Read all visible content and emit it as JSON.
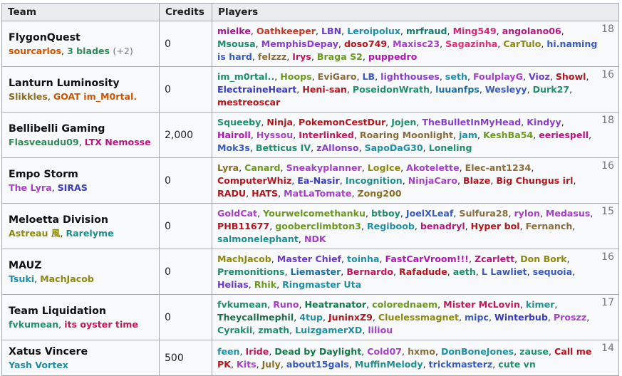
{
  "headers": {
    "team": "Team",
    "credits": "Credits",
    "players": "Players"
  },
  "rows": [
    {
      "team": "FlygonQuest",
      "captains": [
        {
          "name": "sourcarlos",
          "color": "#d35400"
        },
        {
          "name": "3 blades",
          "color": "#2e8b57"
        }
      ],
      "captains_extra": "(+2)",
      "credits": "0",
      "count": "18",
      "players": [
        {
          "n": "mielke",
          "c": "#a0198a"
        },
        {
          "n": "Oathkeeper",
          "c": "#c0392b"
        },
        {
          "n": "LBN",
          "c": "#6a3dc8"
        },
        {
          "n": "Leroipolux",
          "c": "#1f8fa6"
        },
        {
          "n": "mrfraud",
          "c": "#147a6b"
        },
        {
          "n": "Ming549",
          "c": "#d6247a"
        },
        {
          "n": "angolano06",
          "c": "#b5197f"
        },
        {
          "n": "Msousa",
          "c": "#1f8f6e"
        },
        {
          "n": "MemphisDepay",
          "c": "#8a3fd1"
        },
        {
          "n": "doso749",
          "c": "#b5161d"
        },
        {
          "n": "Maxisc23",
          "c": "#a640c8"
        },
        {
          "n": "Sagazinha",
          "c": "#e0307a"
        },
        {
          "n": "CarTulo",
          "c": "#8e8a0f"
        },
        {
          "n": "hi.naming is hard",
          "c": "#3a5cc2"
        },
        {
          "n": "felzzz",
          "c": "#8a6d3b"
        },
        {
          "n": "Irys",
          "c": "#c2185b"
        },
        {
          "n": "Braga S2",
          "c": "#6a9a1f"
        },
        {
          "n": "puppedro",
          "c": "#b018b0"
        }
      ]
    },
    {
      "team": "Lanturn Luminosity",
      "captains": [
        {
          "name": "Slikkles",
          "color": "#8a6d1f"
        },
        {
          "name": "GOAT im_M0rtal.",
          "color": "#d35400"
        }
      ],
      "captains_extra": "",
      "credits": "0",
      "count": "16",
      "players": [
        {
          "n": "im_m0rtal..",
          "c": "#1f8f6e"
        },
        {
          "n": "Hoops",
          "c": "#6a9a1f"
        },
        {
          "n": "EviGaro",
          "c": "#8a6d3b"
        },
        {
          "n": "LB",
          "c": "#3a5cc2"
        },
        {
          "n": "lighthouses",
          "c": "#8a3fd1"
        },
        {
          "n": "seth",
          "c": "#1f8fa6"
        },
        {
          "n": "FoulplayG",
          "c": "#a640c8"
        },
        {
          "n": "Vioz",
          "c": "#6a3dc8"
        },
        {
          "n": "Showl",
          "c": "#b5161d"
        },
        {
          "n": "ElectraineHeart",
          "c": "#3a3dc2"
        },
        {
          "n": "Heni-san",
          "c": "#b5161d"
        },
        {
          "n": "PoseidonWrath",
          "c": "#1f8f6e"
        },
        {
          "n": "luuanfps",
          "c": "#1f6fa6"
        },
        {
          "n": "Wesleyy",
          "c": "#3a5cc2"
        },
        {
          "n": "Durk27",
          "c": "#1f8f6e"
        },
        {
          "n": "mestreoscar",
          "c": "#b5161d"
        }
      ]
    },
    {
      "team": "Bellibelli Gaming",
      "captains": [
        {
          "name": "Flasveaudu09",
          "color": "#2e8b57"
        },
        {
          "name": "LTX Nemosse",
          "color": "#b5197f"
        }
      ],
      "captains_extra": "",
      "credits": "2,000",
      "count": "18",
      "players": [
        {
          "n": "Squeeby",
          "c": "#1f8f6e"
        },
        {
          "n": "Ninja",
          "c": "#b5161d"
        },
        {
          "n": "PokemonCestDur",
          "c": "#b5161d"
        },
        {
          "n": "Jojen",
          "c": "#1f8f6e"
        },
        {
          "n": "TheBulletInMyHead",
          "c": "#8a3fd1"
        },
        {
          "n": "Kindyy",
          "c": "#8a3fd1"
        },
        {
          "n": "Hairoll",
          "c": "#b018b0"
        },
        {
          "n": "Hyssou",
          "c": "#a640c8"
        },
        {
          "n": "Interlinked",
          "c": "#c2185b"
        },
        {
          "n": "Roaring Moonlight",
          "c": "#8a6d3b"
        },
        {
          "n": "jam",
          "c": "#1f8fa6"
        },
        {
          "n": "KeshBa54",
          "c": "#6a9a1f"
        },
        {
          "n": "eeriespell",
          "c": "#b5197f"
        },
        {
          "n": "Mok3s",
          "c": "#3a5cc2"
        },
        {
          "n": "Betticus IV",
          "c": "#1f8f6e"
        },
        {
          "n": "zAllonso",
          "c": "#8a3fd1"
        },
        {
          "n": "SapoDaG30",
          "c": "#1f8fa6"
        },
        {
          "n": "Loneling",
          "c": "#1f8f6e"
        }
      ]
    },
    {
      "team": "Empo Storm",
      "captains": [
        {
          "name": "The Lyra",
          "color": "#a640c8"
        },
        {
          "name": "SIRAS",
          "color": "#3a3dc2"
        }
      ],
      "captains_extra": "",
      "credits": "0",
      "count": "16",
      "players": [
        {
          "n": "Lyra",
          "c": "#8a6d1f"
        },
        {
          "n": "Canard",
          "c": "#6a9a1f"
        },
        {
          "n": "Sneakyplanner",
          "c": "#a640c8"
        },
        {
          "n": "LogIce",
          "c": "#8e8a0f"
        },
        {
          "n": "Akotelette",
          "c": "#a640c8"
        },
        {
          "n": "Elec-ant1234",
          "c": "#8a6d3b"
        },
        {
          "n": "ComputerWhiz",
          "c": "#b5161d"
        },
        {
          "n": "Ea-Nasir",
          "c": "#3a3dc2"
        },
        {
          "n": "Incognition",
          "c": "#1f8f8f"
        },
        {
          "n": "NinjaCaro",
          "c": "#a640c8"
        },
        {
          "n": "Blaze",
          "c": "#b5161d"
        },
        {
          "n": "Big Chungus irl",
          "c": "#b5161d"
        },
        {
          "n": "RADU",
          "c": "#b5161d"
        },
        {
          "n": "HATS",
          "c": "#b5161d"
        },
        {
          "n": "MatLaTomate",
          "c": "#a640c8"
        },
        {
          "n": "Zong200",
          "c": "#8a6d1f"
        }
      ]
    },
    {
      "team": "Meloetta Division",
      "captains": [
        {
          "name": "Astreau 風",
          "color": "#8e8a0f"
        },
        {
          "name": "Rarelyme",
          "color": "#1f8f8f"
        }
      ],
      "captains_extra": "",
      "credits": "0",
      "count": "15",
      "players": [
        {
          "n": "GoldCat",
          "c": "#a640c8"
        },
        {
          "n": "Yourwelcomethanku",
          "c": "#6a9a1f"
        },
        {
          "n": "btboy",
          "c": "#1f8f6e"
        },
        {
          "n": "JoelXLeaf",
          "c": "#3a5cc2"
        },
        {
          "n": "Sulfura28",
          "c": "#8a6d3b"
        },
        {
          "n": "rylon",
          "c": "#a640c8"
        },
        {
          "n": "Medasus",
          "c": "#a640c8"
        },
        {
          "n": "PHB11677",
          "c": "#b5161d"
        },
        {
          "n": "gooberclimbton3",
          "c": "#6a9a1f"
        },
        {
          "n": "Regiboob",
          "c": "#1f8fa6"
        },
        {
          "n": "benadryl",
          "c": "#b5197f"
        },
        {
          "n": "Hyper bol",
          "c": "#b5161d"
        },
        {
          "n": "Fernanch",
          "c": "#8a6d3b"
        },
        {
          "n": "salmonelephant",
          "c": "#1f8f8f"
        },
        {
          "n": "NDK",
          "c": "#a640c8"
        }
      ]
    },
    {
      "team": "MAUZ",
      "captains": [
        {
          "name": "Tsuki",
          "color": "#1f8fa6"
        },
        {
          "name": "MachJacob",
          "color": "#8e8a0f"
        }
      ],
      "captains_extra": "",
      "credits": "0",
      "count": "16",
      "players": [
        {
          "n": "MachJacob",
          "c": "#8e8a0f"
        },
        {
          "n": "Master Chief",
          "c": "#6a3dc8"
        },
        {
          "n": "toinha",
          "c": "#1f8fa6"
        },
        {
          "n": "FastCarVroom!!!",
          "c": "#b018b0"
        },
        {
          "n": "Zcarlett",
          "c": "#b5197f"
        },
        {
          "n": "Don Bork",
          "c": "#8e8a0f"
        },
        {
          "n": "Premonitions",
          "c": "#1f8f6e"
        },
        {
          "n": "Liemaster",
          "c": "#1f6fa6"
        },
        {
          "n": "Bernardo",
          "c": "#c2185b"
        },
        {
          "n": "Rafadude",
          "c": "#b5161d"
        },
        {
          "n": "aeth",
          "c": "#1f8f6e"
        },
        {
          "n": "L Lawliet",
          "c": "#3a5cc2"
        },
        {
          "n": "sequoia",
          "c": "#3a5cc2"
        },
        {
          "n": "Helias",
          "c": "#6a3dc8"
        },
        {
          "n": "Rhik",
          "c": "#6a9a1f"
        },
        {
          "n": "Ringmaster Uta",
          "c": "#1f8fa6"
        }
      ]
    },
    {
      "team": "Team Liquidation",
      "captains": [
        {
          "name": "fvkumean",
          "color": "#1f8f6e"
        },
        {
          "name": "its oyster time",
          "color": "#c2185b"
        }
      ],
      "captains_extra": "",
      "credits": "0",
      "count": "17",
      "players": [
        {
          "n": "fvkumean",
          "c": "#1f8f6e"
        },
        {
          "n": "Runo",
          "c": "#a640c8"
        },
        {
          "n": "Heatranator",
          "c": "#147a4b"
        },
        {
          "n": "colorednaem",
          "c": "#6a9a1f"
        },
        {
          "n": "Mister McLovin",
          "c": "#c2185b"
        },
        {
          "n": "kimer",
          "c": "#1f8f8f"
        },
        {
          "n": "Theycallmephil",
          "c": "#1f6f4b"
        },
        {
          "n": "4tup",
          "c": "#1f8fa6"
        },
        {
          "n": "JuninxZ9",
          "c": "#b5161d"
        },
        {
          "n": "Cluelessmagnet",
          "c": "#8e8a0f"
        },
        {
          "n": "mipc",
          "c": "#3a5cc2"
        },
        {
          "n": "Winterbub",
          "c": "#3a3dc2"
        },
        {
          "n": "Proszz",
          "c": "#a640c8"
        },
        {
          "n": "Cyrakii",
          "c": "#1f8f6e"
        },
        {
          "n": "zmath",
          "c": "#1f8f6e"
        },
        {
          "n": "LuizgamerXD",
          "c": "#1f8fa6"
        },
        {
          "n": "liliou",
          "c": "#a640c8"
        }
      ]
    },
    {
      "team": "Xatus Vincere",
      "captains": [
        {
          "name": "Yash Vortex",
          "color": "#1f8fa6"
        }
      ],
      "captains_extra": "",
      "credits": "500",
      "count": "14",
      "players": [
        {
          "n": "feen",
          "c": "#1f8fa6"
        },
        {
          "n": "Iride",
          "c": "#c2185b"
        },
        {
          "n": "Dead by Daylight",
          "c": "#147a4b"
        },
        {
          "n": "Cold07",
          "c": "#a640c8"
        },
        {
          "n": "hxmo",
          "c": "#8a6d3b"
        },
        {
          "n": "DonBoneJones",
          "c": "#1f8fa6"
        },
        {
          "n": "zause",
          "c": "#1f8f6e"
        },
        {
          "n": "Call me PK",
          "c": "#b5161d"
        },
        {
          "n": "Kits",
          "c": "#a640c8"
        },
        {
          "n": "July",
          "c": "#8a6d1f"
        },
        {
          "n": "about15gals",
          "c": "#3a5cc2"
        },
        {
          "n": "MuffinMelody",
          "c": "#1f8f8f"
        },
        {
          "n": "trickmasterz",
          "c": "#3a5cc2"
        },
        {
          "n": "cute vn",
          "c": "#1f8f6e"
        }
      ]
    }
  ]
}
